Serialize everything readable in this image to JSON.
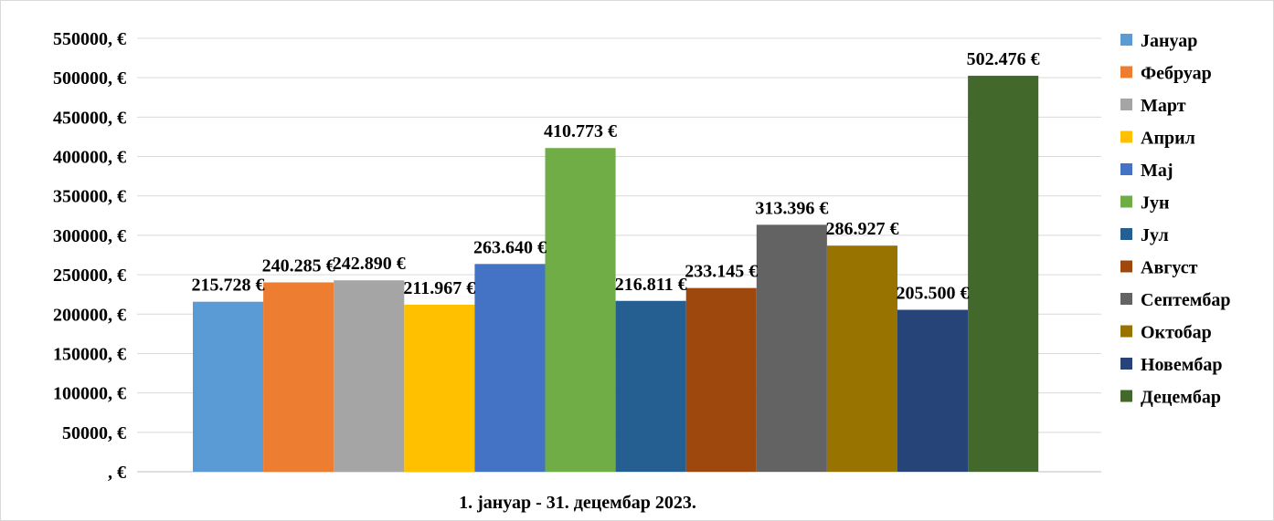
{
  "chart_data": {
    "type": "bar",
    "xlabel": "1. јануар  - 31. децембар 2023.",
    "ylabel": "",
    "ylim": [
      0,
      550000
    ],
    "y_ticks": [
      0,
      50000,
      100000,
      150000,
      200000,
      250000,
      300000,
      350000,
      400000,
      450000,
      500000,
      550000
    ],
    "y_tick_labels": [
      ", €",
      "50000, €",
      "100000, €",
      "150000, €",
      "200000, €",
      "250000, €",
      "300000, €",
      "350000, €",
      "400000, €",
      "450000, €",
      "500000, €",
      "550000, €"
    ],
    "grid": true,
    "legend_position": "right",
    "series": [
      {
        "name": "Јануар",
        "value": 215728,
        "label": "215.728 €",
        "color": "#5b9bd5"
      },
      {
        "name": "Фебруар",
        "value": 240285,
        "label": "240.285 €",
        "color": "#ed7d31"
      },
      {
        "name": "Март",
        "value": 242890,
        "label": "242.890 €",
        "color": "#a5a5a5"
      },
      {
        "name": "Април",
        "value": 211967,
        "label": "211.967 €",
        "color": "#ffc000"
      },
      {
        "name": "Мај",
        "value": 263640,
        "label": "263.640 €",
        "color": "#4472c4"
      },
      {
        "name": "Јун",
        "value": 410773,
        "label": "410.773 €",
        "color": "#70ad47"
      },
      {
        "name": "Јул",
        "value": 216811,
        "label": "216.811 €",
        "color": "#255e91"
      },
      {
        "name": "Август",
        "value": 233145,
        "label": "233.145 €",
        "color": "#9e480e"
      },
      {
        "name": "Септембар",
        "value": 313396,
        "label": "313.396 €",
        "color": "#636363"
      },
      {
        "name": "Октобар",
        "value": 286927,
        "label": "286.927 €",
        "color": "#997300"
      },
      {
        "name": "Новембар",
        "value": 205500,
        "label": "205.500 €",
        "color": "#264478"
      },
      {
        "name": "Децембар",
        "value": 502476,
        "label": "502.476 €",
        "color": "#43682b"
      }
    ]
  }
}
